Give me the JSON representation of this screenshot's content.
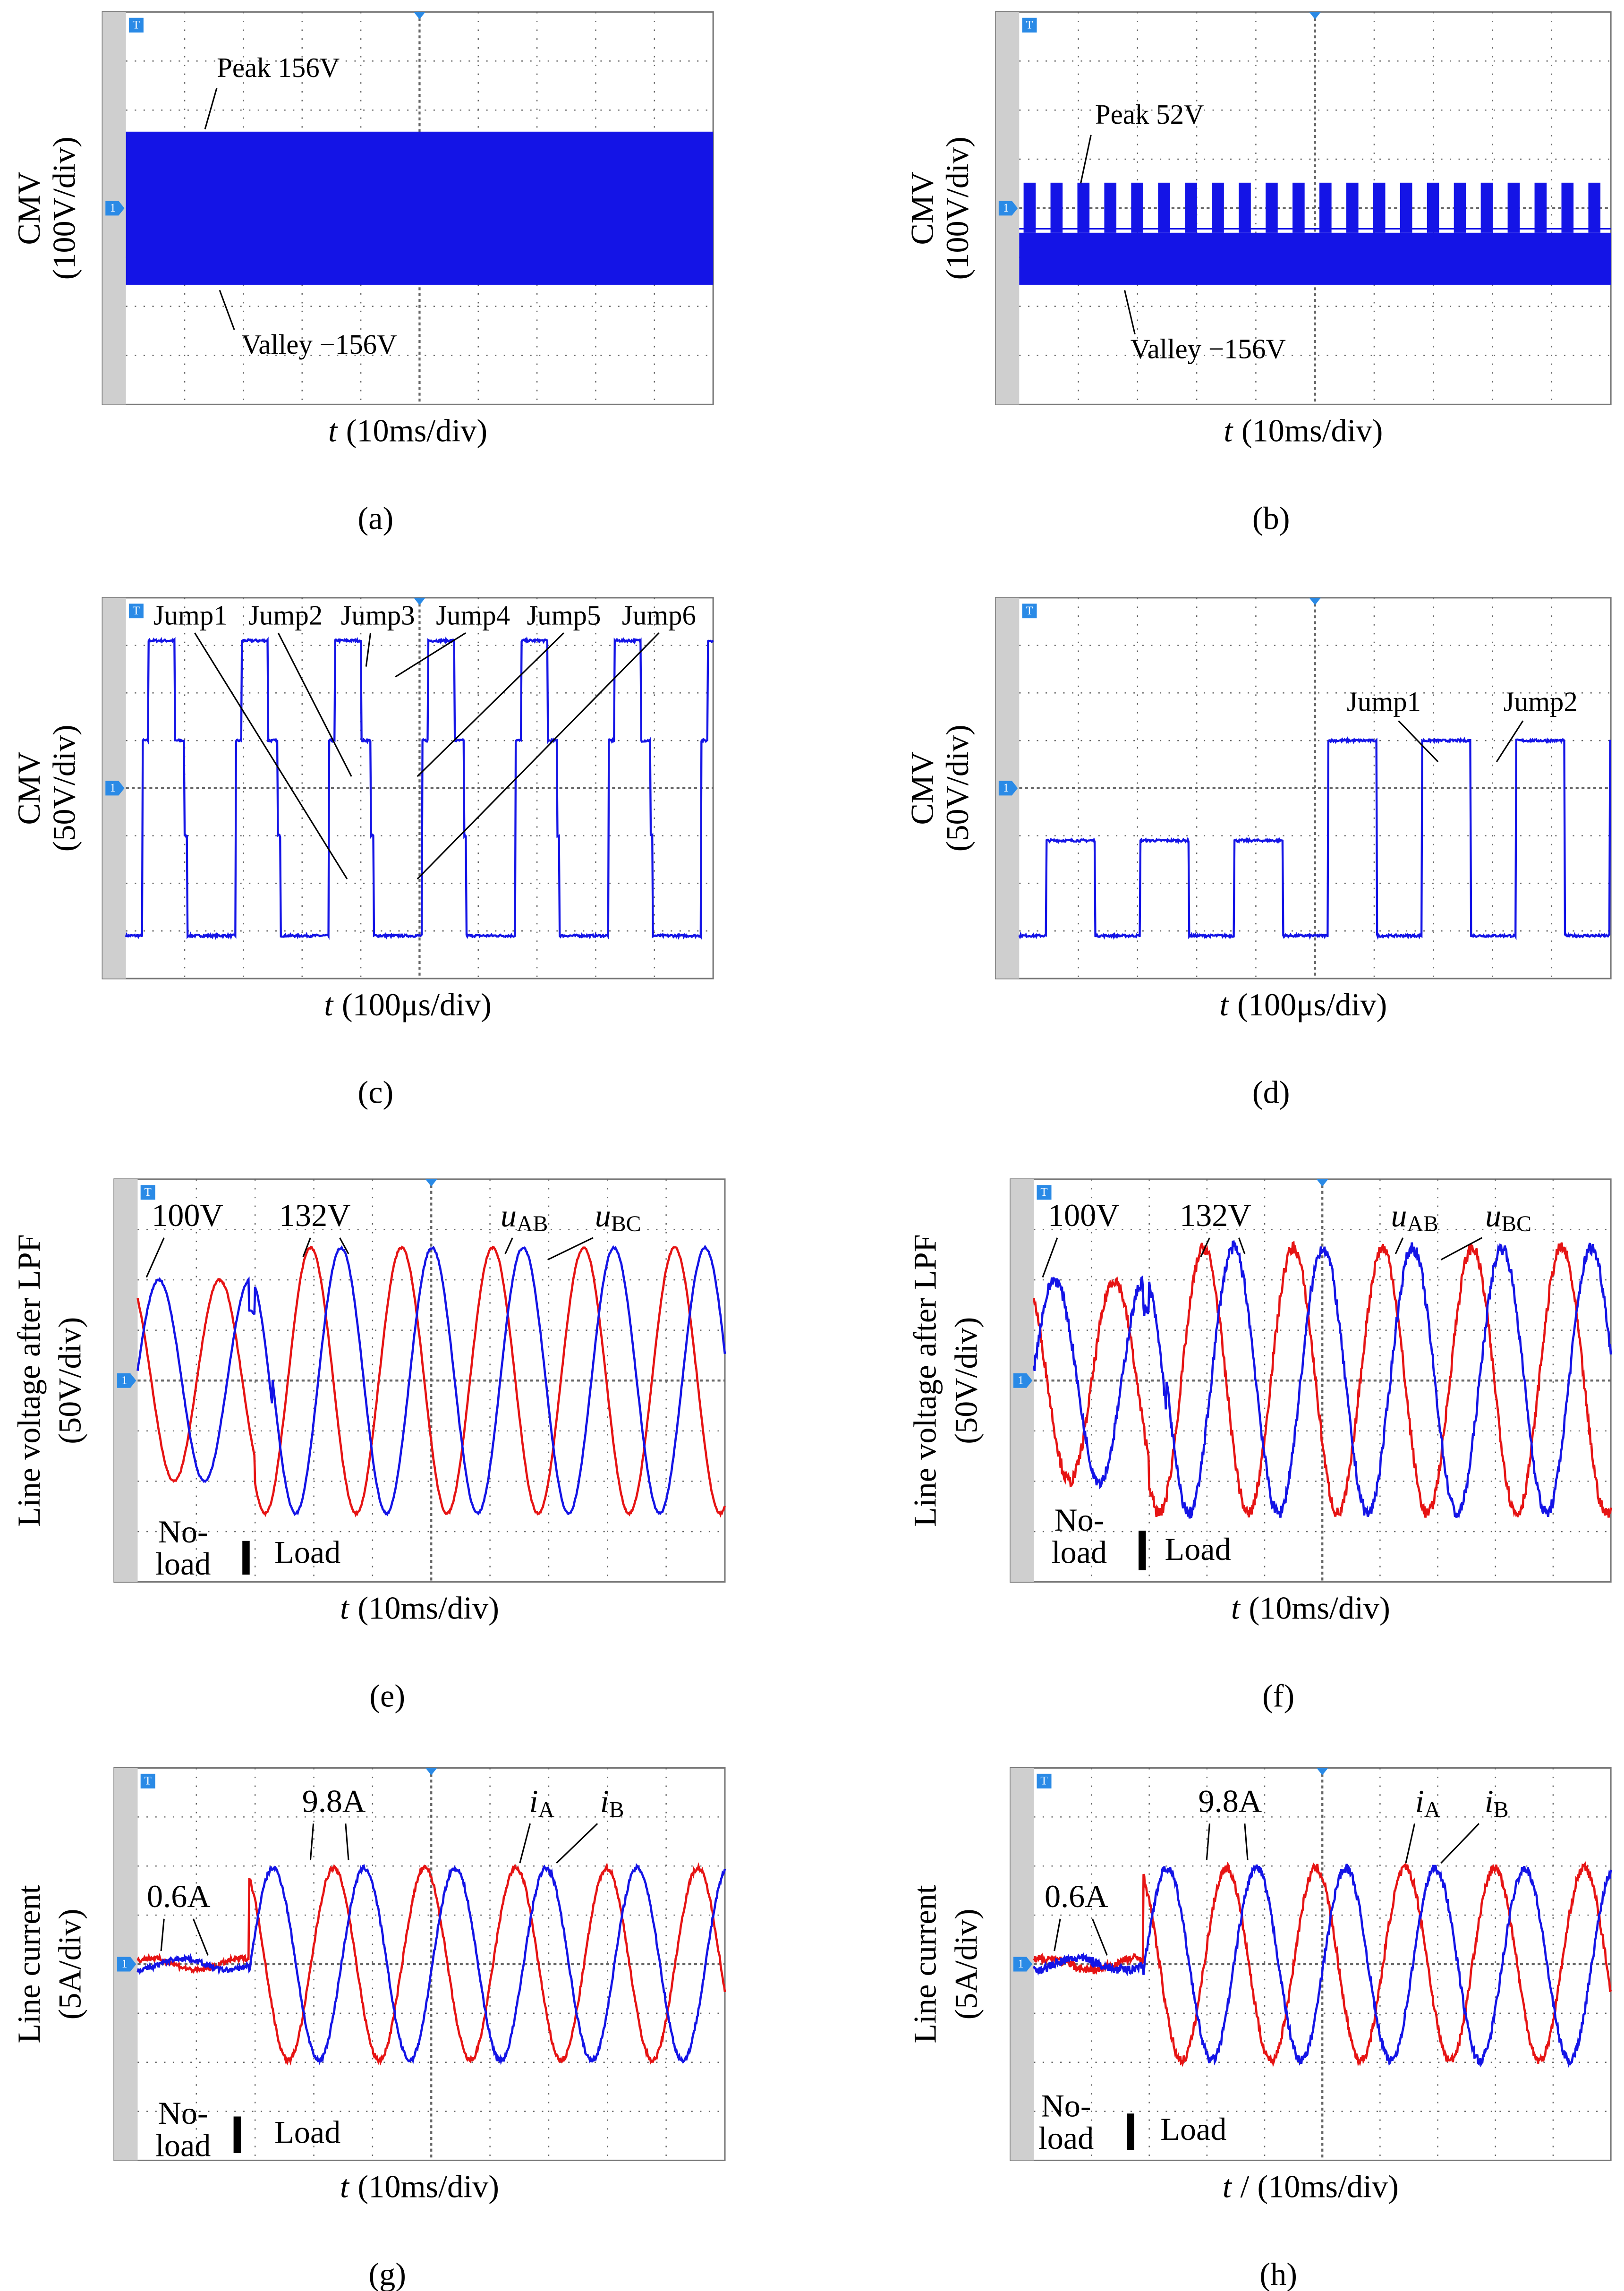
{
  "scope_markers": {
    "channel": "1",
    "trigger": "T"
  },
  "panels": [
    {
      "y_label": "CMV",
      "y_unit": "(100V/div)",
      "x_label": {
        "symbol": "t",
        "text": "(10ms/div)"
      },
      "label": "(a)",
      "annotations": [
        "Peak 156V",
        "Valley −156V"
      ]
    },
    {
      "y_label": "CMV",
      "y_unit": "(100V/div)",
      "x_label": {
        "symbol": "t",
        "text": "(10ms/div)"
      },
      "label": "(b)",
      "annotations": [
        "Peak 52V",
        "Valley −156V"
      ]
    },
    {
      "y_label": "CMV",
      "y_unit": "(50V/div)",
      "x_label": {
        "symbol": "t",
        "text": "(100μs/div)"
      },
      "label": "(c)",
      "annotations": [
        "Jump1",
        "Jump2",
        "Jump3",
        "Jump4",
        "Jump5",
        "Jump6"
      ]
    },
    {
      "y_label": "CMV",
      "y_unit": "(50V/div)",
      "x_label": {
        "symbol": "t",
        "text": "(100μs/div)"
      },
      "label": "(d)",
      "annotations": [
        "Jump1",
        "Jump2"
      ]
    },
    {
      "y_label": "Line voltage after LPF",
      "y_unit": "(50V/div)",
      "x_label": {
        "symbol": "t",
        "text": "(10ms/div)"
      },
      "label": "(e)",
      "annotations": [
        "100V",
        "132V",
        {
          "symbol": "u",
          "sub": "AB"
        },
        {
          "symbol": "u",
          "sub": "BC"
        },
        "No-",
        "load",
        "Load"
      ]
    },
    {
      "y_label": "Line voltage after LPF",
      "y_unit": "(50V/div)",
      "x_label": {
        "symbol": "t",
        "text": "(10ms/div)"
      },
      "label": "(f)",
      "annotations": [
        "100V",
        "132V",
        {
          "symbol": "u",
          "sub": "AB"
        },
        {
          "symbol": "u",
          "sub": "BC"
        },
        "No-",
        "load",
        "Load"
      ]
    },
    {
      "y_label": "Line current",
      "y_unit": "(5A/div)",
      "x_label": {
        "symbol": "t",
        "text": "(10ms/div)"
      },
      "label": "(g)",
      "annotations": [
        "0.6A",
        "9.8A",
        {
          "symbol": "i",
          "sub": "A"
        },
        {
          "symbol": "i",
          "sub": "B"
        },
        "No-",
        "load",
        "Load"
      ]
    },
    {
      "y_label": "Line current",
      "y_unit": "(5A/div)",
      "x_label": {
        "symbol": "t",
        "text": "/ (10ms/div)"
      },
      "label": "(h)",
      "annotations": [
        "0.6A",
        "9.8A",
        {
          "symbol": "i",
          "sub": "A"
        },
        {
          "symbol": "i",
          "sub": "B"
        },
        "No-",
        "load",
        "Load"
      ]
    }
  ]
}
